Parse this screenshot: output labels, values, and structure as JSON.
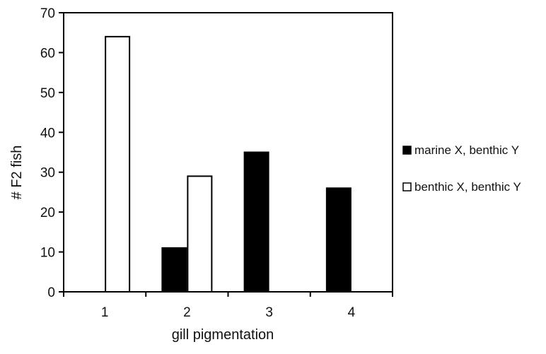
{
  "colors": {
    "marine_series": "#000000",
    "benthic_series": "#ffffff",
    "stroke": "#000000"
  },
  "chart_data": {
    "type": "bar",
    "title": "",
    "xlabel": "gill pigmentation",
    "ylabel": "# F2 fish",
    "categories": [
      "1",
      "2",
      "3",
      "4"
    ],
    "series": [
      {
        "name": "marine X, benthic Y",
        "values": [
          0,
          11,
          35,
          26
        ],
        "fill": "#000000"
      },
      {
        "name": "benthic X, benthic Y",
        "values": [
          64,
          29,
          0,
          0
        ],
        "fill": "#ffffff"
      }
    ],
    "ylim": [
      0,
      70
    ],
    "yticks": [
      "0",
      "10",
      "20",
      "30",
      "40",
      "50",
      "60",
      "70"
    ],
    "grid": false,
    "legend_position": "right"
  }
}
